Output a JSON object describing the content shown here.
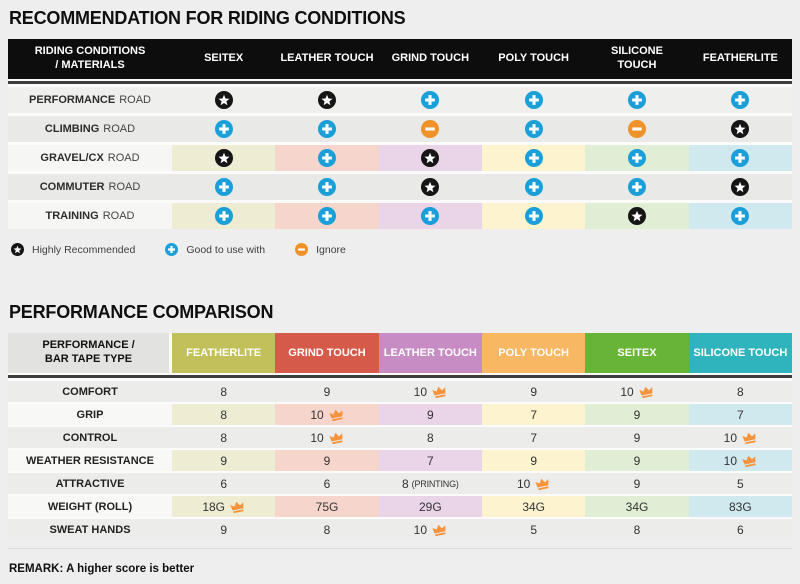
{
  "colors": {
    "accent_blue": "#1b9fd8",
    "accent_orange": "#f0922a",
    "icon_black": "#151515",
    "crown_orange": "#f5943c",
    "header_black": "#0d0d0d",
    "tints": [
      "#eeecd2",
      "#f6d6cc",
      "#ead4e8",
      "#fdf3cf",
      "#dfeed4",
      "#d0e9ee"
    ],
    "tape_header_colors": [
      "#c2c05a",
      "#d65a4a",
      "#c88cc4",
      "#f7b763",
      "#67b437",
      "#2fb3bd"
    ]
  },
  "chart_data": [
    {
      "type": "table",
      "title": "RECOMMENDATION FOR RIDING CONDITIONS",
      "header": [
        "RIDING CONDITIONS / MATERIALS",
        "SEITEX",
        "LEATHER TOUCH",
        "GRIND TOUCH",
        "POLY TOUCH",
        "SILICONE TOUCH",
        "FEATHERLITE"
      ],
      "icon_legend": [
        {
          "icon": "star",
          "label": "Highly Recommended"
        },
        {
          "icon": "plus",
          "label": "Good to use with"
        },
        {
          "icon": "minus",
          "label": "Ignore"
        }
      ],
      "rows": [
        {
          "label_bold": "PERFORMANCE",
          "label_rest": "ROAD",
          "tinted": false,
          "cells": [
            "star",
            "star",
            "plus",
            "plus",
            "plus",
            "plus"
          ]
        },
        {
          "label_bold": "CLIMBING",
          "label_rest": "ROAD",
          "tinted": false,
          "cells": [
            "plus",
            "plus",
            "minus",
            "plus",
            "minus",
            "star"
          ]
        },
        {
          "label_bold": "GRAVEL/CX",
          "label_rest": "ROAD",
          "tinted": true,
          "cells": [
            "star",
            "plus",
            "star",
            "plus",
            "plus",
            "plus"
          ]
        },
        {
          "label_bold": "COMMUTER",
          "label_rest": "ROAD",
          "tinted": false,
          "cells": [
            "plus",
            "plus",
            "star",
            "plus",
            "plus",
            "star"
          ]
        },
        {
          "label_bold": "TRAINING",
          "label_rest": "ROAD",
          "tinted": true,
          "cells": [
            "plus",
            "plus",
            "plus",
            "plus",
            "star",
            "plus"
          ]
        }
      ]
    },
    {
      "type": "table",
      "title": "PERFORMANCE COMPARISON",
      "header_label": "PERFORMANCE / BAR TAPE TYPE",
      "columns": [
        "FEATHERLITE",
        "GRIND TOUCH",
        "LEATHER TOUCH",
        "POLY TOUCH",
        "SEITEX",
        "SILICONE TOUCH"
      ],
      "rows": [
        {
          "label": "COMFORT",
          "tinted": false,
          "cells": [
            {
              "v": "8"
            },
            {
              "v": "9"
            },
            {
              "v": "10",
              "crown": true
            },
            {
              "v": "9"
            },
            {
              "v": "10",
              "crown": true
            },
            {
              "v": "8"
            }
          ]
        },
        {
          "label": "GRIP",
          "tinted": true,
          "cells": [
            {
              "v": "8"
            },
            {
              "v": "10",
              "crown": true
            },
            {
              "v": "9"
            },
            {
              "v": "7"
            },
            {
              "v": "9"
            },
            {
              "v": "7"
            }
          ]
        },
        {
          "label": "CONTROL",
          "tinted": false,
          "cells": [
            {
              "v": "8"
            },
            {
              "v": "10",
              "crown": true
            },
            {
              "v": "8"
            },
            {
              "v": "7"
            },
            {
              "v": "9"
            },
            {
              "v": "10",
              "crown": true
            }
          ]
        },
        {
          "label": "WEATHER RESISTANCE",
          "tinted": true,
          "cells": [
            {
              "v": "9"
            },
            {
              "v": "9"
            },
            {
              "v": "7"
            },
            {
              "v": "9"
            },
            {
              "v": "9"
            },
            {
              "v": "10",
              "crown": true
            }
          ]
        },
        {
          "label": "ATTRACTIVE",
          "tinted": false,
          "cells": [
            {
              "v": "6"
            },
            {
              "v": "6"
            },
            {
              "v": "8",
              "note": "(PRINTING)"
            },
            {
              "v": "10",
              "crown": true
            },
            {
              "v": "9"
            },
            {
              "v": "5"
            }
          ]
        },
        {
          "label": "WEIGHT (ROLL)",
          "tinted": true,
          "cells": [
            {
              "v": "18G",
              "crown": true
            },
            {
              "v": "75G"
            },
            {
              "v": "29G"
            },
            {
              "v": "34G"
            },
            {
              "v": "34G"
            },
            {
              "v": "83G"
            }
          ]
        },
        {
          "label": "SWEAT HANDS",
          "tinted": false,
          "cells": [
            {
              "v": "9"
            },
            {
              "v": "8"
            },
            {
              "v": "10",
              "crown": true
            },
            {
              "v": "5"
            },
            {
              "v": "8"
            },
            {
              "v": "6"
            }
          ]
        }
      ],
      "remark": "REMARK: A higher score is better"
    }
  ]
}
